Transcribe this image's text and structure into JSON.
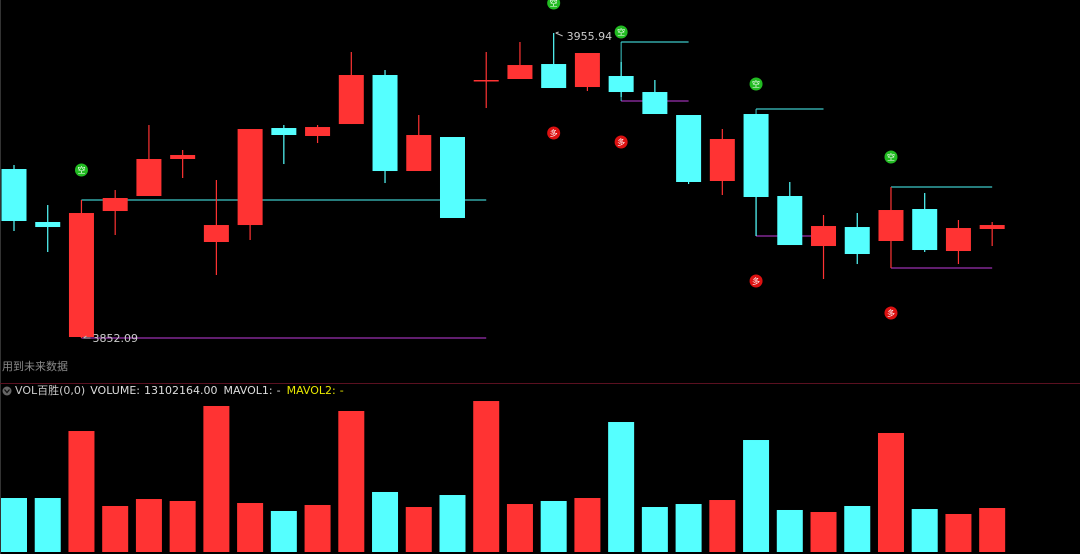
{
  "chart_data": [
    {
      "type": "candlestick",
      "caption": "用到未来数据",
      "up_color": "#ff3333",
      "down_color": "#55ffff",
      "ylim": [
        3837.79,
        3967.18
      ],
      "open": [
        3909.63,
        3891.59,
        3852.43,
        3895.33,
        3900.44,
        3913.04,
        3884.78,
        3890.56,
        3923.59,
        3920.87,
        3924.95,
        3941.64,
        3908.95,
        3920.53,
        3939.94,
        3940.28,
        3945.38,
        3937.55,
        3941.3,
        3935.85,
        3928.02,
        3905.55,
        3928.36,
        3900.44,
        3883.41,
        3889.88,
        3885.12,
        3896.01,
        3881.71,
        3889.2
      ],
      "high": [
        3910.99,
        3897.37,
        3899.08,
        3902.48,
        3924.61,
        3916.1,
        3905.89,
        3923.25,
        3924.61,
        3924.61,
        3949.47,
        3943.34,
        3928.02,
        3920.53,
        3949.47,
        3952.88,
        3955.94,
        3949.13,
        3946.07,
        3939.94,
        3928.02,
        3923.25,
        3928.36,
        3905.21,
        3893.97,
        3894.65,
        3903.5,
        3901.46,
        3892.27,
        3891.59
      ],
      "low": [
        3888.52,
        3881.37,
        3852.09,
        3887.16,
        3900.44,
        3906.57,
        3873.54,
        3885.46,
        3911.33,
        3918.48,
        3924.95,
        3904.86,
        3908.95,
        3892.95,
        3930.4,
        3940.28,
        3937.21,
        3936.19,
        3934.15,
        3928.36,
        3904.52,
        3900.78,
        3886.82,
        3883.75,
        3872.18,
        3877.28,
        3875.92,
        3881.37,
        3877.28,
        3883.41
      ],
      "close": [
        3891.93,
        3889.88,
        3894.65,
        3899.76,
        3913.04,
        3914.4,
        3890.56,
        3923.25,
        3921.21,
        3923.93,
        3941.64,
        3908.95,
        3921.21,
        3892.95,
        3939.94,
        3945.04,
        3937.21,
        3949.13,
        3935.85,
        3928.36,
        3905.21,
        3919.85,
        3900.1,
        3883.75,
        3890.22,
        3880.69,
        3895.67,
        3882.05,
        3889.54,
        3890.56
      ],
      "bands": [
        {
          "x": [
            2,
            14
          ],
          "upper": 3899.08,
          "lower": 3852.09
        },
        {
          "x": [
            18,
            20
          ],
          "upper": 3952.88,
          "lower": 3932.79
        },
        {
          "x": [
            22,
            24
          ],
          "upper": 3930.06,
          "lower": 3886.82
        },
        {
          "x": [
            26,
            29
          ],
          "upper": 3903.5,
          "lower": 3875.92
        }
      ],
      "upper_color": "#3cc8c8",
      "lower_color": "#9a30b0",
      "short_signals": {
        "label": "空",
        "color": "#22bb22",
        "x": [
          2,
          16,
          18,
          22,
          26
        ]
      },
      "long_signals": {
        "label": "多",
        "color": "#dd1111",
        "x": [
          16,
          18,
          22,
          26
        ]
      },
      "max_mark": {
        "x": 16,
        "value": 3955.94
      },
      "min_mark": {
        "x": 2,
        "value": 3852.09
      }
    },
    {
      "type": "volume",
      "title": "VOL百胜(0,0)",
      "ylim": [
        0,
        50030000
      ],
      "readout": [
        {
          "name": "VOLUME:",
          "value": 13102164,
          "label": "13102164.00",
          "color": "#dddddd"
        },
        {
          "name": "MAVOL1:",
          "label": "-",
          "color": "#dddddd"
        },
        {
          "name": "MAVOL2:",
          "label": "-",
          "color": "#e8e800"
        }
      ],
      "values": [
        16080000,
        16080000,
        36030000,
        13700000,
        15780000,
        15190000,
        43480000,
        14590000,
        12210000,
        14000000,
        41990000,
        17870000,
        13400000,
        16970000,
        44960000,
        14290000,
        15190000,
        16080000,
        38710000,
        13400000,
        14290000,
        15480000,
        33350000,
        12510000,
        11910000,
        13700000,
        35440000,
        12800000,
        11320000,
        13102164
      ]
    }
  ]
}
